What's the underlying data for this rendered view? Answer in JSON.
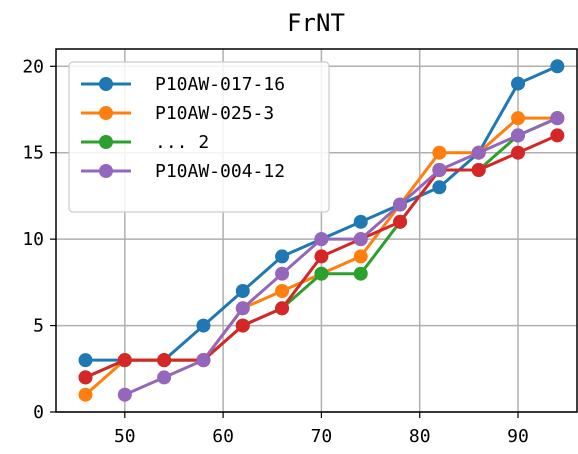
{
  "chart_data": {
    "type": "line",
    "title": "FrNT",
    "xlabel": "",
    "ylabel": "",
    "xlim": [
      43,
      96
    ],
    "ylim": [
      0,
      21
    ],
    "xticks": [
      50,
      60,
      70,
      80,
      90
    ],
    "yticks": [
      0,
      5,
      10,
      15,
      20
    ],
    "grid": true,
    "legend_position": "upper-left",
    "series": [
      {
        "name": "P10AW-017-16",
        "color": "#1f77b4",
        "x": [
          46,
          50,
          54,
          58,
          62,
          66,
          70,
          74,
          78,
          82,
          86,
          90,
          94
        ],
        "y": [
          3,
          3,
          3,
          5,
          7,
          9,
          10,
          11,
          12,
          13,
          15,
          19,
          20
        ]
      },
      {
        "name": "P10AW-025-3",
        "color": "#ff7f0e",
        "x": [
          46,
          50,
          54,
          58,
          62,
          66,
          70,
          74,
          78,
          82,
          86,
          90,
          94
        ],
        "y": [
          1,
          3,
          3,
          3,
          6,
          7,
          8,
          9,
          12,
          15,
          15,
          17,
          17
        ]
      },
      {
        "name": "... 2",
        "color": "#2ca02c",
        "x": [
          46,
          50,
          54,
          58,
          62,
          66,
          70,
          74,
          78,
          82,
          86,
          90,
          94
        ],
        "y": [
          2,
          3,
          3,
          3,
          5,
          6,
          8,
          8,
          11,
          14,
          14,
          16,
          17
        ]
      },
      {
        "name": "",
        "color": "#d62728",
        "x": [
          46,
          50,
          54,
          58,
          62,
          66,
          70,
          74,
          78,
          82,
          86,
          90,
          94
        ],
        "y": [
          2,
          3,
          3,
          3,
          5,
          6,
          9,
          10,
          11,
          14,
          14,
          15,
          16
        ]
      },
      {
        "name": "P10AW-004-12",
        "color": "#9467bd",
        "x": [
          50,
          54,
          58,
          62,
          66,
          70,
          74,
          78,
          82,
          86,
          90,
          94
        ],
        "y": [
          1,
          2,
          3,
          6,
          8,
          10,
          10,
          12,
          14,
          15,
          16,
          17
        ]
      }
    ],
    "legend_series": [
      0,
      1,
      2,
      4
    ]
  }
}
